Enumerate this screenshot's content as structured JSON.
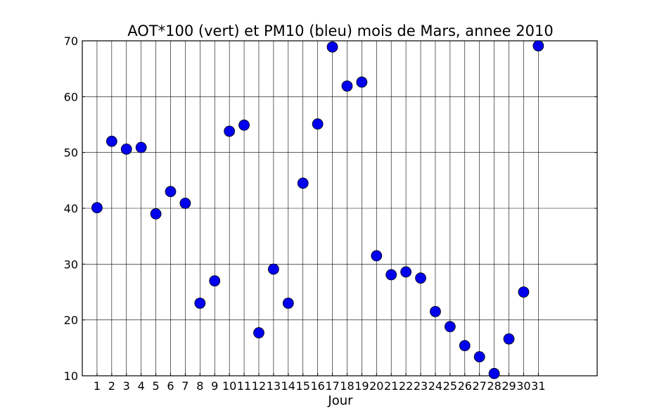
{
  "chart_data": {
    "type": "scatter",
    "title": "AOT*100 (vert) et PM10 (bleu) mois de Mars, annee 2010",
    "xlabel": "Jour",
    "ylabel": "",
    "xlim": [
      0,
      35
    ],
    "ylim": [
      10,
      70
    ],
    "grid": true,
    "x_ticks": [
      1,
      2,
      3,
      4,
      5,
      6,
      7,
      8,
      9,
      10,
      11,
      12,
      13,
      14,
      15,
      16,
      17,
      18,
      19,
      20,
      21,
      22,
      23,
      24,
      25,
      26,
      27,
      28,
      29,
      30,
      31
    ],
    "y_ticks": [
      10,
      20,
      30,
      40,
      50,
      60,
      70
    ],
    "series": [
      {
        "color": "#0000ee",
        "x": [
          1,
          2,
          3,
          4,
          5,
          6,
          7,
          8,
          9,
          10,
          11,
          12,
          13,
          14,
          15,
          16,
          17,
          18,
          19,
          20,
          21,
          22,
          23,
          24,
          25,
          26,
          27,
          28,
          29,
          30,
          31
        ],
        "values": [
          40.1,
          52.0,
          50.6,
          50.9,
          39.0,
          43.0,
          40.9,
          23.0,
          27.0,
          53.8,
          54.9,
          17.7,
          29.1,
          23.0,
          44.5,
          55.1,
          68.9,
          61.9,
          62.6,
          31.5,
          28.1,
          28.6,
          27.5,
          21.5,
          18.8,
          15.4,
          13.4,
          10.4,
          16.6,
          25.0,
          69.1
        ]
      }
    ]
  }
}
